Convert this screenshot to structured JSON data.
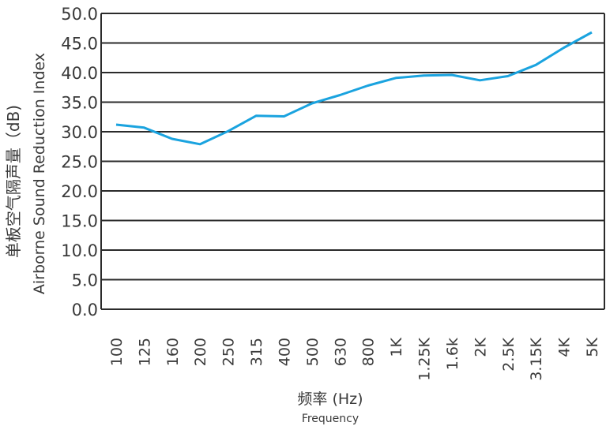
{
  "chart_data": {
    "type": "line",
    "categories": [
      "100",
      "125",
      "160",
      "200",
      "250",
      "315",
      "400",
      "500",
      "630",
      "800",
      "1K",
      "1.25K",
      "1.6k",
      "2K",
      "2.5K",
      "3.15K",
      "4K",
      "5K"
    ],
    "series": [
      {
        "values": [
          31.2,
          30.7,
          28.8,
          27.9,
          30.1,
          32.7,
          32.6,
          34.8,
          36.2,
          37.8,
          39.1,
          39.5,
          39.6,
          38.7,
          39.4,
          41.3,
          44.2,
          46.8
        ]
      }
    ],
    "yticks": [
      "0.0",
      "5.0",
      "10.0",
      "15.0",
      "20.0",
      "25.0",
      "30.0",
      "35.0",
      "40.0",
      "45.0",
      "50.0"
    ],
    "ylim": [
      0,
      50
    ],
    "ylabel_cn": "单板空气隔声量（dB)",
    "ylabel_en": "Airborne Sound Reduction Index",
    "xlabel_cn": "频率 (Hz)",
    "xlabel_en": "Frequency",
    "grid": true,
    "colors": {
      "line": "#1aa3df",
      "grid": "#2b2b2b",
      "text": "#3a3a3a"
    }
  }
}
